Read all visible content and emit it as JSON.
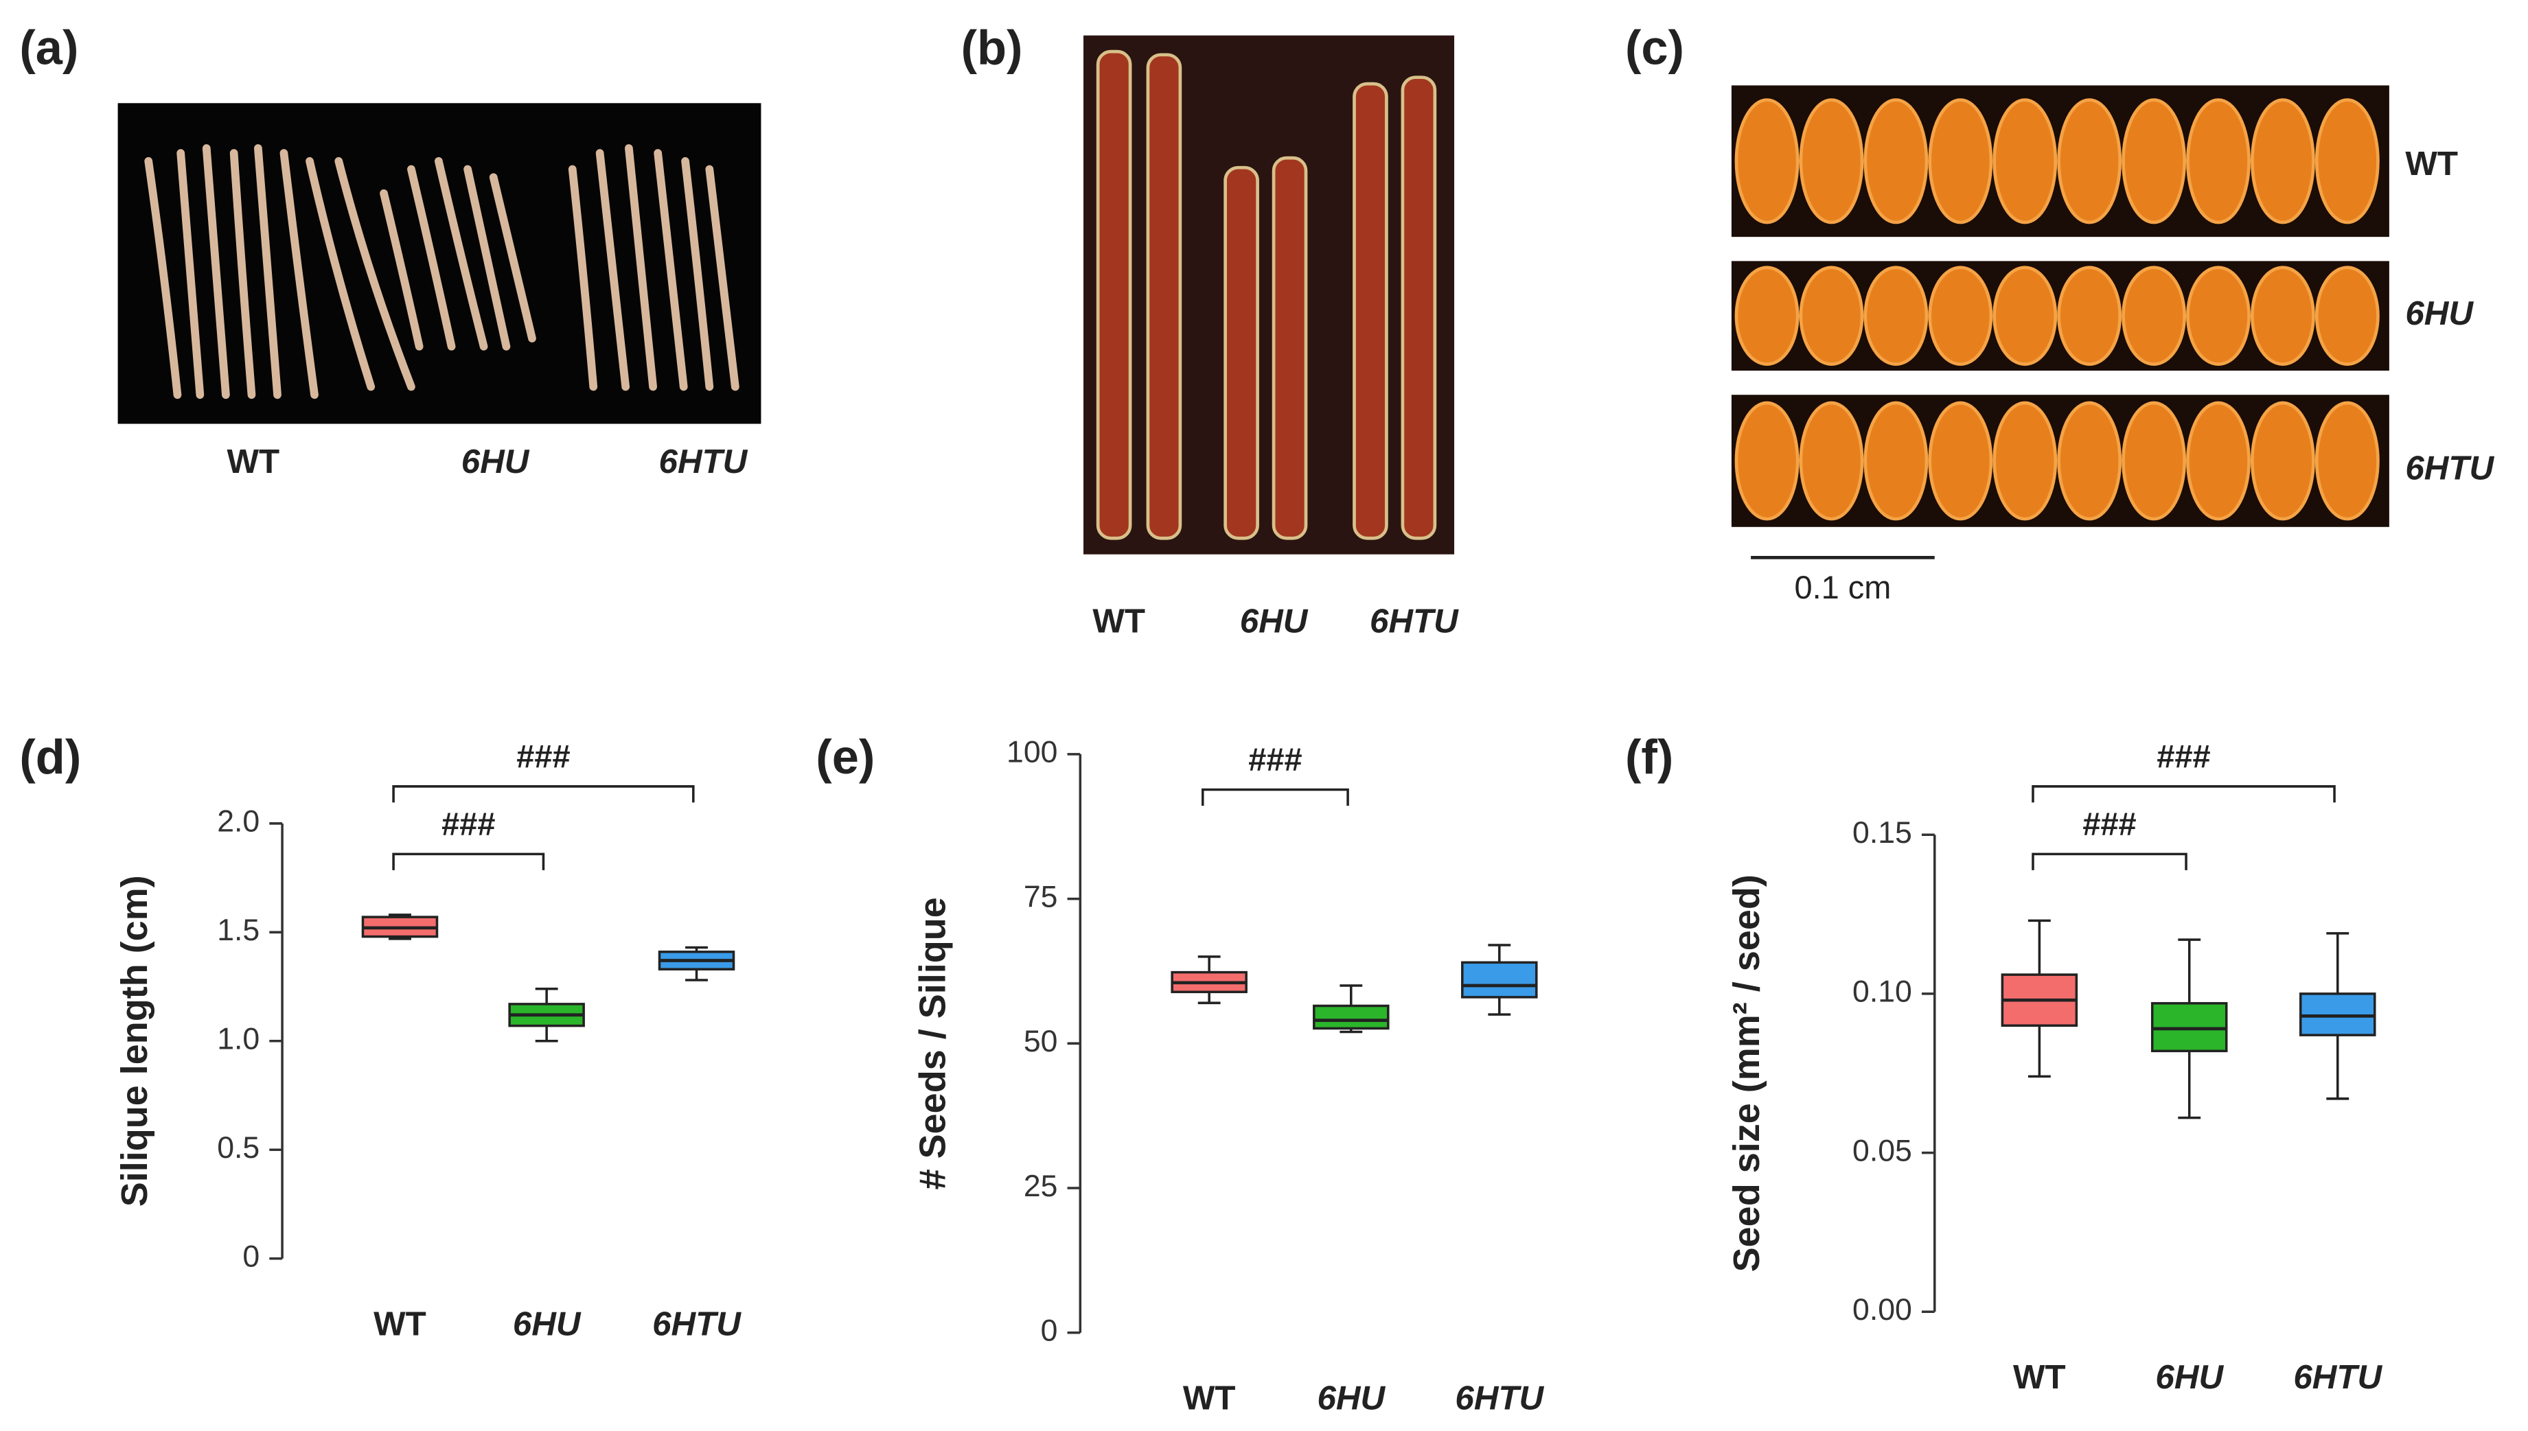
{
  "photo_panels": [
    {
      "panel_label": "(a)",
      "labels": [
        "WT",
        "6HU",
        "6HTU"
      ]
    },
    {
      "panel_label": "(b)",
      "labels": [
        "WT",
        "6HU",
        "6HTU"
      ]
    },
    {
      "panel_label": "(c)",
      "labels": [
        "WT",
        "6HU",
        "6HTU"
      ],
      "scale_bar": "0.1 cm"
    }
  ],
  "chart_data": [
    {
      "type": "box",
      "panel_label": "(d)",
      "y_label": "Silique length (cm)",
      "categories": [
        "WT",
        "6HU",
        "6HTU"
      ],
      "colors": [
        "#f46d6d",
        "#2bb52b",
        "#3a9be8"
      ],
      "boxes": [
        {
          "min": 1.47,
          "q1": 1.48,
          "median": 1.52,
          "q3": 1.57,
          "max": 1.58
        },
        {
          "min": 1.0,
          "q1": 1.07,
          "median": 1.12,
          "q3": 1.17,
          "max": 1.24
        },
        {
          "min": 1.28,
          "q1": 1.33,
          "median": 1.37,
          "q3": 1.41,
          "max": 1.43
        }
      ],
      "ylim": [
        0,
        2
      ],
      "yticks": [
        0,
        0.5,
        {
          "value": 1,
          "label": "1.0"
        },
        1.5,
        {
          "value": 2,
          "label": "2.0"
        }
      ],
      "annotations": [
        "###",
        "###"
      ]
    },
    {
      "type": "box",
      "panel_label": "(e)",
      "y_label": "# Seeds / Silique",
      "categories": [
        "WT",
        "6HU",
        "6HTU"
      ],
      "colors": [
        "#f46d6d",
        "#2bb52b",
        "#3a9be8"
      ],
      "boxes": [
        {
          "min": 57,
          "q1": 58.9,
          "median": 60.5,
          "q3": 62.3,
          "max": 65
        },
        {
          "min": 52,
          "q1": 52.6,
          "median": 54,
          "q3": 56.5,
          "max": 60
        },
        {
          "min": 55,
          "q1": 58,
          "median": 60,
          "q3": 64,
          "max": 67
        }
      ],
      "ylim": [
        0,
        100
      ],
      "yticks": [
        0,
        25,
        50,
        75,
        100
      ],
      "annotations": [
        "###"
      ]
    },
    {
      "type": "box",
      "panel_label": "(f)",
      "y_label": "Seed size (mm² / seed)",
      "categories": [
        "WT",
        "6HU",
        "6HTU"
      ],
      "colors": [
        "#f46d6d",
        "#2bb52b",
        "#3a9be8"
      ],
      "boxes": [
        {
          "min": 0.074,
          "q1": 0.09,
          "median": 0.098,
          "q3": 0.106,
          "max": 0.123
        },
        {
          "min": 0.061,
          "q1": 0.082,
          "median": 0.089,
          "q3": 0.097,
          "max": 0.117
        },
        {
          "min": 0.067,
          "q1": 0.087,
          "median": 0.093,
          "q3": 0.1,
          "max": 0.119
        }
      ],
      "ylim": [
        0,
        0.15
      ],
      "yticks": [
        {
          "value": 0,
          "label": "0.00"
        },
        {
          "value": 0.05,
          "label": "0.05"
        },
        {
          "value": 0.1,
          "label": "0.10"
        },
        {
          "value": 0.15,
          "label": "0.15"
        }
      ],
      "annotations": [
        "###",
        "###"
      ]
    }
  ]
}
